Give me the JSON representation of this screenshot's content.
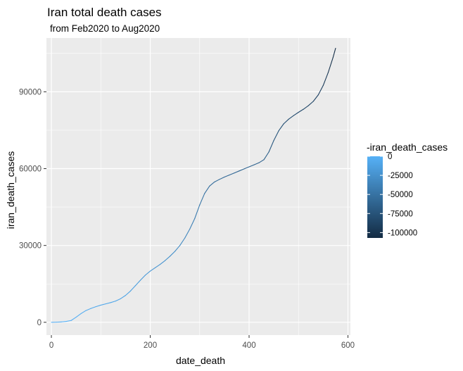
{
  "chart_data": {
    "type": "line",
    "title": "Iran total death cases",
    "subtitle": "from Feb2020 to Aug2020",
    "xlabel": "date_death",
    "ylabel": "iran_death_cases",
    "xlim": [
      -10,
      605
    ],
    "ylim": [
      -5000,
      111000
    ],
    "x_ticks": [
      0,
      200,
      400,
      600
    ],
    "x_tick_labels": [
      "0",
      "200",
      "400",
      "600"
    ],
    "y_ticks": [
      0,
      30000,
      60000,
      90000
    ],
    "y_tick_labels": [
      "0",
      "30000",
      "60000",
      "90000"
    ],
    "grid": true,
    "legend": {
      "title": "-iran_death_cases",
      "position": "right",
      "range": [
        -107000,
        0
      ],
      "breaks": [
        0,
        -25000,
        -50000,
        -75000,
        -100000
      ],
      "labels": [
        "0",
        "-25000",
        "-50000",
        "-75000",
        "-100000"
      ],
      "color_low": "#132B43",
      "color_high": "#56B1F7"
    },
    "series": [
      {
        "x": [
          0,
          10,
          20,
          30,
          40,
          50,
          60,
          70,
          80,
          90,
          100,
          110,
          120,
          130,
          140,
          150,
          160,
          170,
          180,
          190,
          200,
          210,
          220,
          230,
          240,
          250,
          260,
          270,
          280,
          290,
          300,
          310,
          320,
          330,
          340,
          350,
          360,
          370,
          380,
          390,
          400,
          410,
          420,
          430,
          440,
          450,
          460,
          470,
          480,
          490,
          500,
          510,
          520,
          530,
          540,
          550,
          560,
          570,
          575
        ],
        "y": [
          0,
          50,
          150,
          350,
          700,
          2000,
          3400,
          4600,
          5400,
          6100,
          6700,
          7200,
          7700,
          8300,
          9200,
          10500,
          12200,
          14300,
          16400,
          18400,
          20000,
          21300,
          22600,
          24100,
          25800,
          27700,
          30000,
          32900,
          36400,
          40500,
          45800,
          50300,
          53200,
          54800,
          55800,
          56700,
          57500,
          58300,
          59100,
          59900,
          60700,
          61500,
          62300,
          63500,
          66500,
          71000,
          74800,
          77500,
          79300,
          80700,
          82000,
          83200,
          84600,
          86300,
          88800,
          92500,
          97500,
          103500,
          107000
        ]
      }
    ]
  },
  "colors": {
    "panel_background": "#EBEBEB",
    "gridline": "#FFFFFF"
  }
}
